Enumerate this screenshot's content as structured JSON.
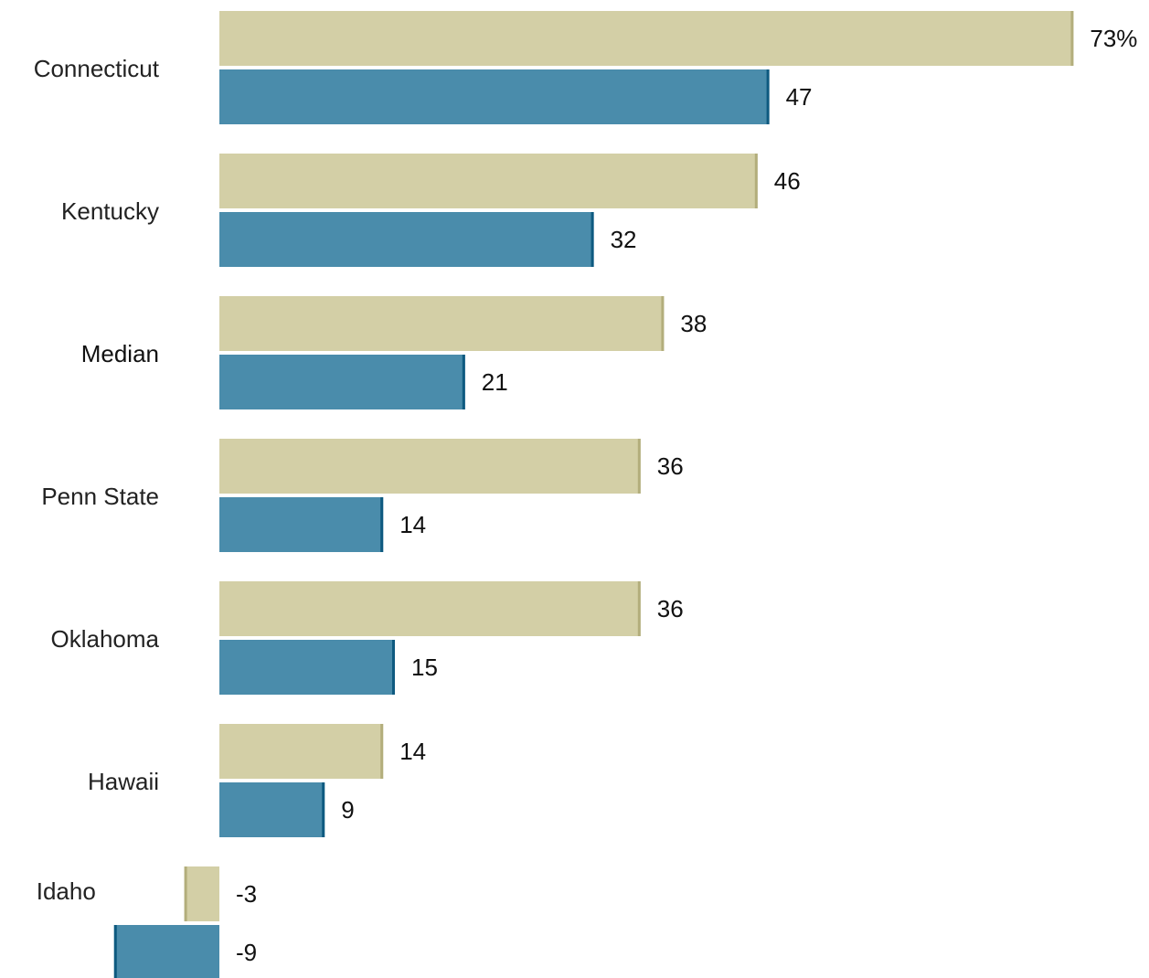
{
  "chart_data": {
    "type": "bar",
    "orientation": "horizontal",
    "categories": [
      "Connecticut",
      "Kentucky",
      "Median",
      "Penn State",
      "Oklahoma",
      "Hawaii",
      "Idaho"
    ],
    "series": [
      {
        "values": [
          73,
          46,
          38,
          36,
          36,
          14,
          -3
        ],
        "color": "#d3cfa6",
        "edge_color": "#b3ae7c"
      },
      {
        "values": [
          47,
          32,
          21,
          14,
          15,
          9,
          -9
        ],
        "color": "#4a8cab",
        "edge_color": "#0e5a80"
      }
    ],
    "value_labels": [
      [
        "73%",
        "46",
        "38",
        "36",
        "36",
        "14",
        "-3"
      ],
      [
        "47",
        "32",
        "21",
        "14",
        "15",
        "9",
        "-9"
      ]
    ],
    "title": "",
    "xlabel": "",
    "ylabel": "",
    "xlim": [
      -9,
      73
    ],
    "grid": false,
    "legend": "none"
  }
}
